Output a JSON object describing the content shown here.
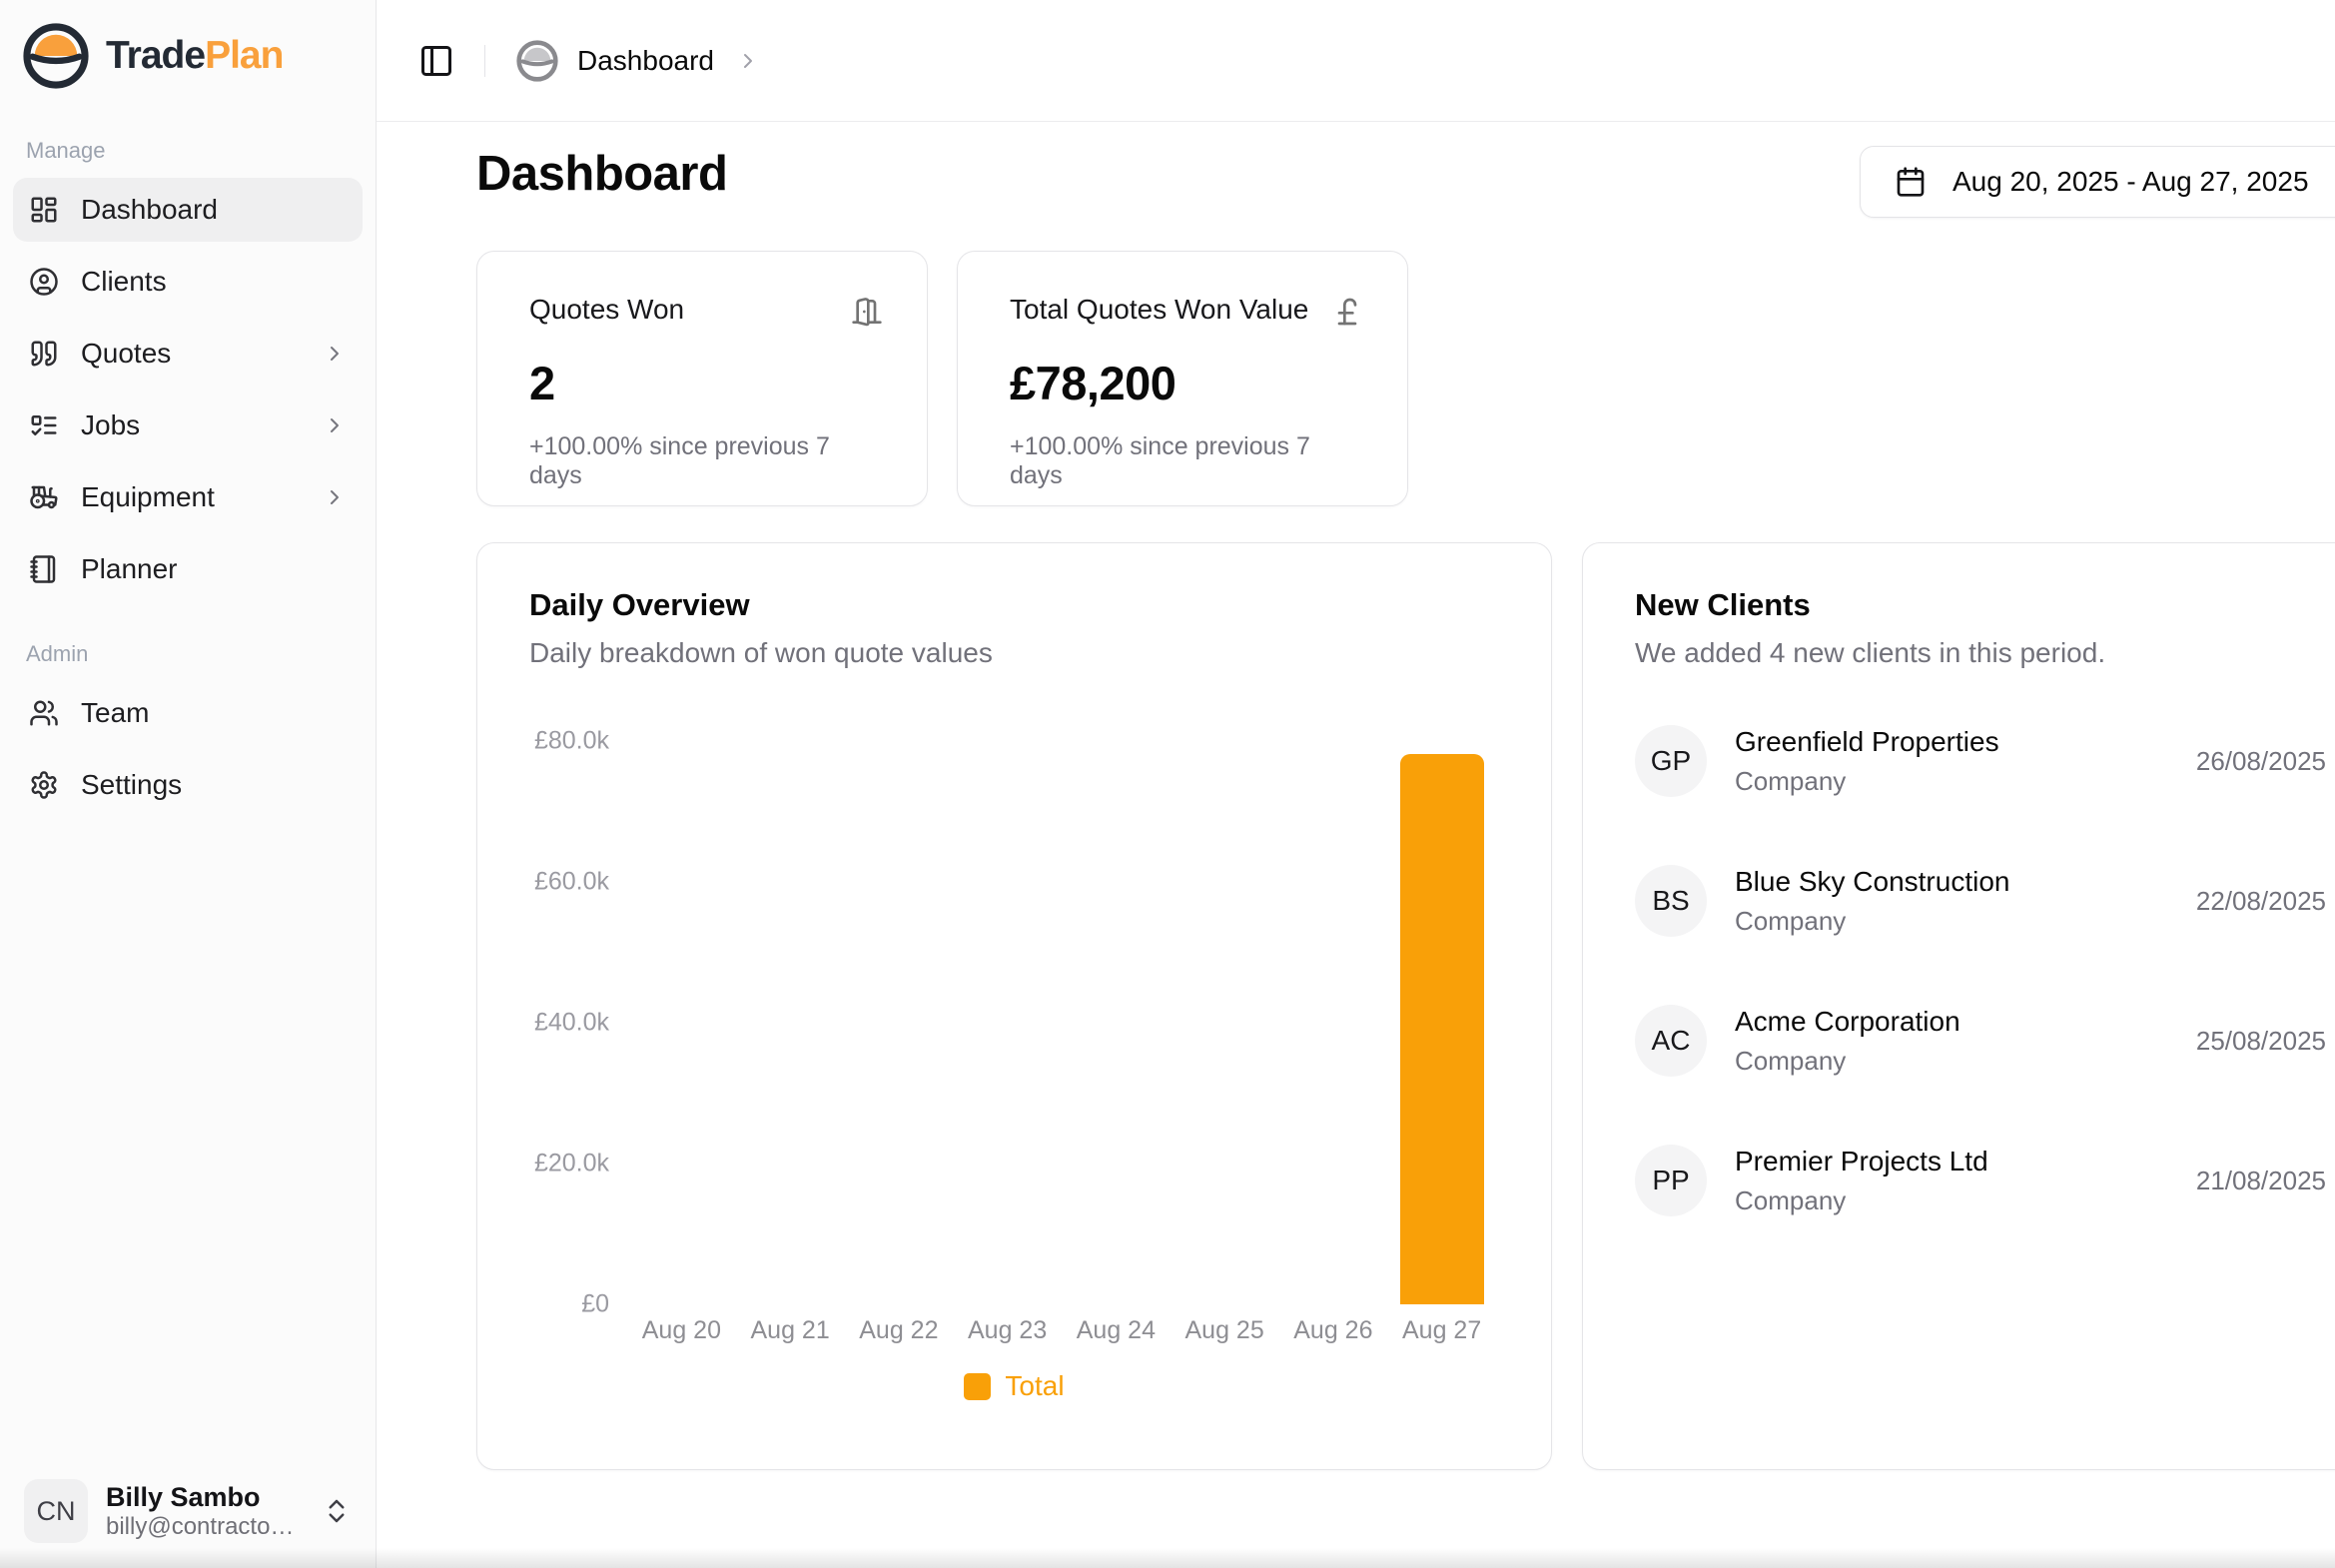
{
  "brand": {
    "name_part1": "Trade",
    "name_part2": "Plan",
    "mark_icon": "hardhat-logo-icon"
  },
  "colors": {
    "accent_orange": "#f9a008",
    "logo_orange": "#f9a03c",
    "logo_dark": "#232a34",
    "gray_text": "#71717a",
    "border": "#e5e5e8",
    "sidebar_bg": "#fbfbfb",
    "active_item_bg": "#efeff0"
  },
  "header": {
    "toggle_icon": "panel-left-icon",
    "breadcrumb": {
      "icon": "brand-mark-gray-icon",
      "label": "Dashboard",
      "chevron_icon": "chevron-right-icon"
    }
  },
  "page": {
    "title": "Dashboard",
    "date_icon": "calendar-icon",
    "date_range_label": "Aug 20, 2025 - Aug 27, 2025"
  },
  "sidebar": {
    "sections": [
      {
        "label": "Manage",
        "items": [
          {
            "label": "Dashboard",
            "icon": "layout-dashboard-icon",
            "active": true,
            "chevron": false
          },
          {
            "label": "Clients",
            "icon": "circle-user-icon",
            "active": false,
            "chevron": false
          },
          {
            "label": "Quotes",
            "icon": "quote-icon",
            "active": false,
            "chevron": true
          },
          {
            "label": "Jobs",
            "icon": "list-todo-icon",
            "active": false,
            "chevron": true
          },
          {
            "label": "Equipment",
            "icon": "tractor-icon",
            "active": false,
            "chevron": true
          },
          {
            "label": "Planner",
            "icon": "notebook-icon",
            "active": false,
            "chevron": false
          }
        ]
      },
      {
        "label": "Admin",
        "items": [
          {
            "label": "Team",
            "icon": "users-icon",
            "active": false,
            "chevron": false
          },
          {
            "label": "Settings",
            "icon": "settings-icon",
            "active": false,
            "chevron": false
          }
        ]
      }
    ],
    "user": {
      "initials": "CN",
      "name": "Billy Sambo",
      "email": "billy@contracto…",
      "menu_icon": "chevrons-up-down-icon"
    }
  },
  "stat_cards": [
    {
      "label": "Quotes Won",
      "value": "2",
      "delta": "+100.00% since previous 7 days",
      "icon": "door-open-icon"
    },
    {
      "label": "Total Quotes Won Value",
      "value": "£78,200",
      "delta": "+100.00% since previous 7 days",
      "icon": "pound-sterling-icon"
    }
  ],
  "daily_overview": {
    "title": "Daily Overview",
    "subtitle": "Daily breakdown of won quote values"
  },
  "chart_data": {
    "type": "bar",
    "title": "Daily Overview",
    "categories": [
      "Aug 20",
      "Aug 21",
      "Aug 22",
      "Aug 23",
      "Aug 24",
      "Aug 25",
      "Aug 26",
      "Aug 27"
    ],
    "series": [
      {
        "name": "Total",
        "values": [
          0,
          0,
          0,
          0,
          0,
          0,
          0,
          78200
        ],
        "color": "#f9a008"
      }
    ],
    "ylim": [
      0,
      80000
    ],
    "ytick_labels": [
      "£0",
      "£20.0k",
      "£40.0k",
      "£60.0k",
      "£80.0k"
    ],
    "xlabel": "",
    "ylabel": "",
    "grid": false,
    "legend": {
      "position": "bottom",
      "entries": [
        "Total"
      ]
    }
  },
  "new_clients": {
    "title": "New Clients",
    "subtitle": "We added 4 new clients in this period.",
    "clients": [
      {
        "initials": "GP",
        "name": "Greenfield Properties",
        "type": "Company",
        "date": "26/08/2025"
      },
      {
        "initials": "BS",
        "name": "Blue Sky Construction",
        "type": "Company",
        "date": "22/08/2025"
      },
      {
        "initials": "AC",
        "name": "Acme Corporation",
        "type": "Company",
        "date": "25/08/2025"
      },
      {
        "initials": "PP",
        "name": "Premier Projects Ltd",
        "type": "Company",
        "date": "21/08/2025"
      }
    ]
  }
}
